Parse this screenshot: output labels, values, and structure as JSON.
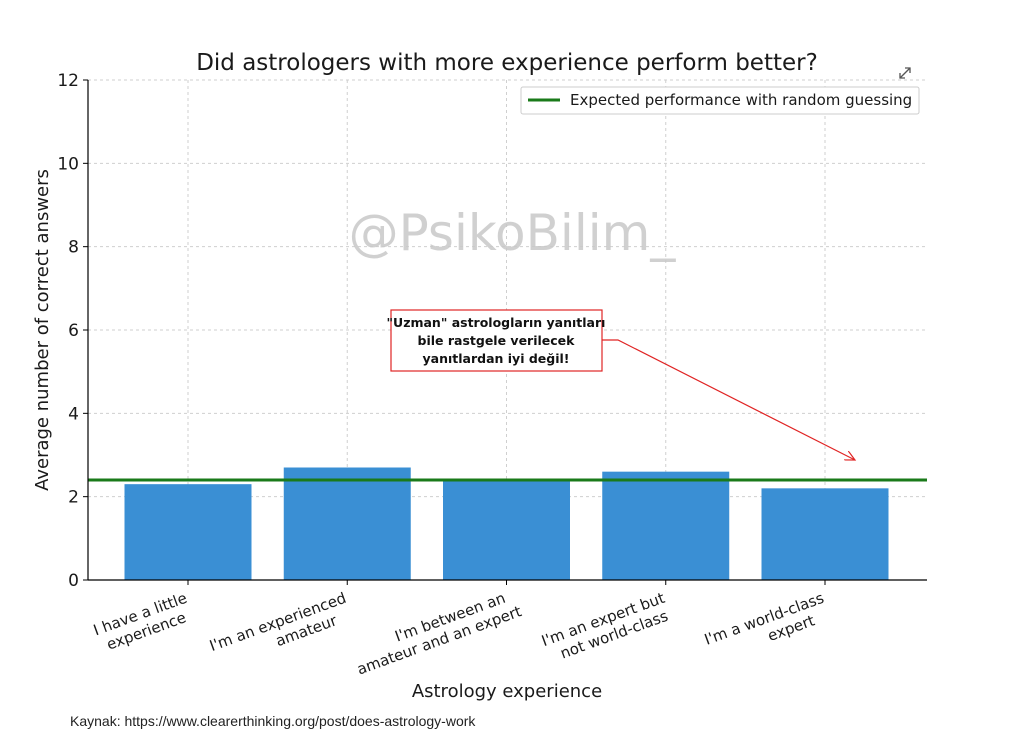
{
  "chart_data": {
    "type": "bar",
    "title": "Did astrologers with more experience perform better?",
    "xlabel": "Astrology experience",
    "ylabel": "Average number of correct answers",
    "categories": [
      [
        "I have a little",
        "experience"
      ],
      [
        "I'm an experienced",
        "amateur"
      ],
      [
        "I'm between an",
        "amateur and an expert"
      ],
      [
        "I'm an expert but",
        "not world-class"
      ],
      [
        "I'm a world-class",
        "expert"
      ]
    ],
    "values": [
      2.3,
      2.7,
      2.4,
      2.6,
      2.2
    ],
    "ylim": [
      0,
      12
    ],
    "yticks": [
      0,
      2,
      4,
      6,
      8,
      10,
      12
    ],
    "grid": true,
    "bar_color": "#3a8fd4",
    "reference_line": {
      "label": "Expected performance with random guessing",
      "value": 2.4,
      "color": "#1a7a1a"
    },
    "legend_position": "top-right",
    "annotation": {
      "lines": [
        "\"Uzman\" astrologların yanıtları",
        "bile rastgele verilecek",
        "yanıtlardan iyi değil!"
      ],
      "color": "#e02424"
    },
    "watermark": "@PsikoBilim_"
  },
  "footer": {
    "source": "Kaynak: https://www.clearerthinking.org/post/does-astrology-work"
  },
  "icons": {
    "expand": "expand-icon"
  }
}
